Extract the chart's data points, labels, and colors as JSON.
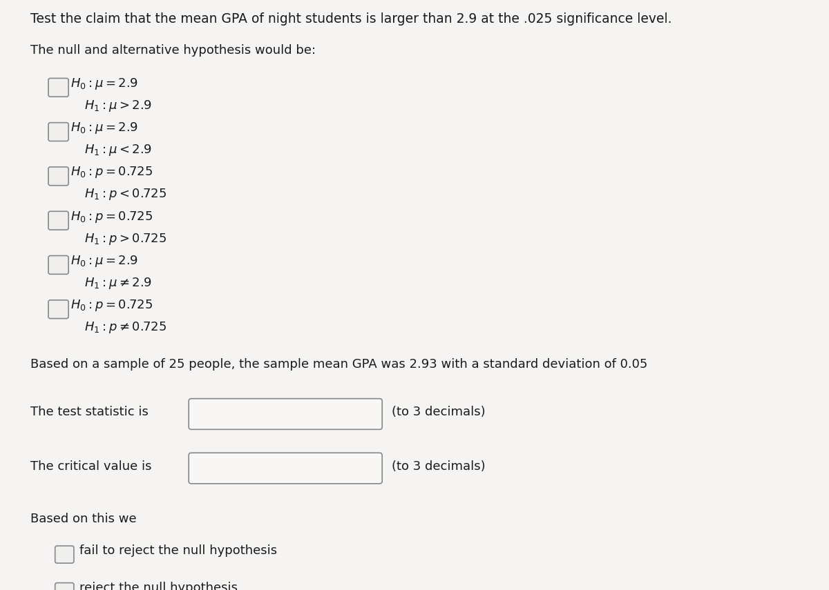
{
  "bg_color": "#f5f4f2",
  "text_color": "#1a1a1a",
  "title_line": "Test the claim that the mean GPA of night students is larger than 2.9 at the .025 significance level.",
  "subtitle": "The null and alternative hypothesis would be:",
  "hypotheses": [
    {
      "h0": "$H_0:\\mu = 2.9$",
      "h1": "$H_1:\\mu > 2.9$"
    },
    {
      "h0": "$H_0:\\mu = 2.9$",
      "h1": "$H_1:\\mu < 2.9$"
    },
    {
      "h0": "$H_0:p = 0.725$",
      "h1": "$H_1:p < 0.725$"
    },
    {
      "h0": "$H_0:p = 0.725$",
      "h1": "$H_1:p > 0.725$"
    },
    {
      "h0": "$H_0:\\mu = 2.9$",
      "h1": "$H_1:\\mu \\neq 2.9$"
    },
    {
      "h0": "$H_0:p = 0.725$",
      "h1": "$H_1:p \\neq 0.725$"
    }
  ],
  "sample_text": "Based on a sample of 25 people, the sample mean GPA was 2.93 with a standard deviation of 0.05",
  "test_stat_label": "The test statistic is",
  "test_stat_suffix": "(to 3 decimals)",
  "critical_val_label": "The critical value is",
  "critical_val_suffix": "(to 3 decimals)",
  "based_on": "Based on this we",
  "options": [
    "fail to reject the null hypothesis",
    "reject the null hypothesis"
  ],
  "font_size_title": 13.5,
  "font_size_body": 13,
  "font_size_hyp": 13
}
